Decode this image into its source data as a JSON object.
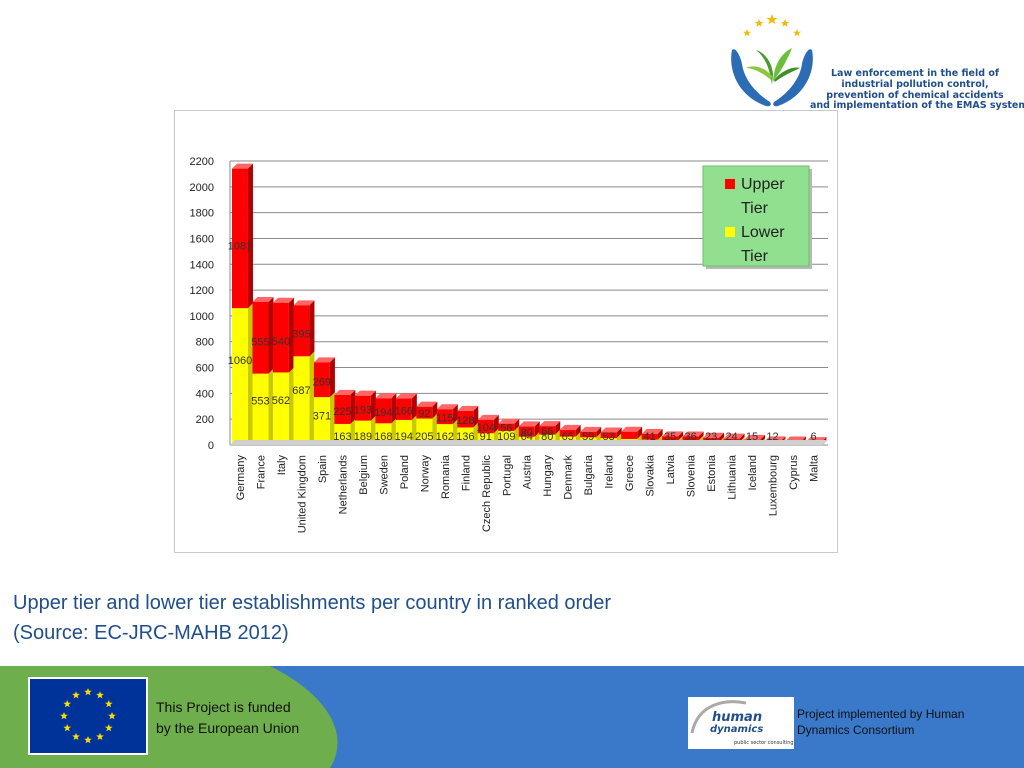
{
  "logo": {
    "text_lines": [
      "Law enforcement in the field of",
      "industrial pollution control,",
      "prevention of chemical accidents",
      "and implementation of the EMAS system"
    ]
  },
  "chart_data": {
    "type": "bar",
    "stacked": true,
    "categories": [
      "Germany",
      "France",
      "Italy",
      "United Kingdom",
      "Spain",
      "Netherlands",
      "Belgium",
      "Sweden",
      "Poland",
      "Norway",
      "Romania",
      "Finland",
      "Czech Republic",
      "Portugal",
      "Austria",
      "Hungary",
      "Denmark",
      "Bulgaria",
      "Ireland",
      "Greece",
      "Slovakia",
      "Latvia",
      "Slovenia",
      "Estonia",
      "Lithuania",
      "Iceland",
      "Luxembourg",
      "Cyprus",
      "Malta"
    ],
    "series": [
      {
        "name": "Lower Tier",
        "color": "#ffff00",
        "values": [
          1060,
          553,
          562,
          687,
          371,
          163,
          189,
          168,
          194,
          205,
          162,
          136,
          91,
          109,
          64,
          80,
          65,
          59,
          53,
          46,
          41,
          35,
          36,
          23,
          24,
          15,
          12,
          10,
          6
        ],
        "labels": [
          "1060",
          "553",
          "562",
          "687",
          "371",
          "163",
          "189",
          "168",
          "194",
          "205",
          "162",
          "136",
          "91",
          "109",
          "64",
          "80",
          "65",
          "59",
          "53",
          "",
          "41",
          "35",
          "36",
          "23",
          "24",
          "15",
          "12",
          "",
          "6"
        ]
      },
      {
        "name": "Upper Tier",
        "color": "#ff0000",
        "values": [
          1081,
          555,
          540,
          395,
          269,
          225,
          193,
          194,
          166,
          92,
          115,
          128,
          104,
          56,
          80,
          66,
          52,
          43,
          44,
          57,
          44,
          32,
          30,
          33,
          25,
          25,
          16,
          17,
          16
        ],
        "labels": [
          "1081",
          "555",
          "540",
          "395",
          "269",
          "225",
          "193",
          "194",
          "166",
          "92",
          "115",
          "128",
          "104",
          "56",
          "80",
          "66",
          "",
          "",
          "",
          "",
          "",
          "",
          "",
          "",
          "",
          "",
          "",
          "",
          ""
        ]
      }
    ],
    "ylim": [
      0,
      2200
    ],
    "yticks": [
      0,
      200,
      400,
      600,
      800,
      1000,
      1200,
      1400,
      1600,
      1800,
      2000,
      2200
    ],
    "legend_position": "top-right",
    "legend": [
      {
        "label_line1": "Upper",
        "label_line2": "Tier",
        "color": "#ff0000"
      },
      {
        "label_line1": "Lower",
        "label_line2": "Tier",
        "color": "#ffff00"
      }
    ],
    "grid": true,
    "xlabel": "",
    "ylabel": "",
    "title": ""
  },
  "caption": {
    "line1": "Upper tier and lower tier establishments per country in ranked order",
    "line2": "(Source: EC-JRC-MAHB 2012)"
  },
  "footer": {
    "funded_line1": "This Project is funded",
    "funded_line2": "by the European Union",
    "hd_word1": "human",
    "hd_word2": "dynamics",
    "hd_tagline": "public sector consulting",
    "impl_text": "Project implemented by Human Dynamics Consortium",
    "colors": {
      "green": "#6fae4c",
      "blue": "#3a78c9",
      "eu_blue": "#003399",
      "eu_star": "#ffdd00"
    }
  }
}
